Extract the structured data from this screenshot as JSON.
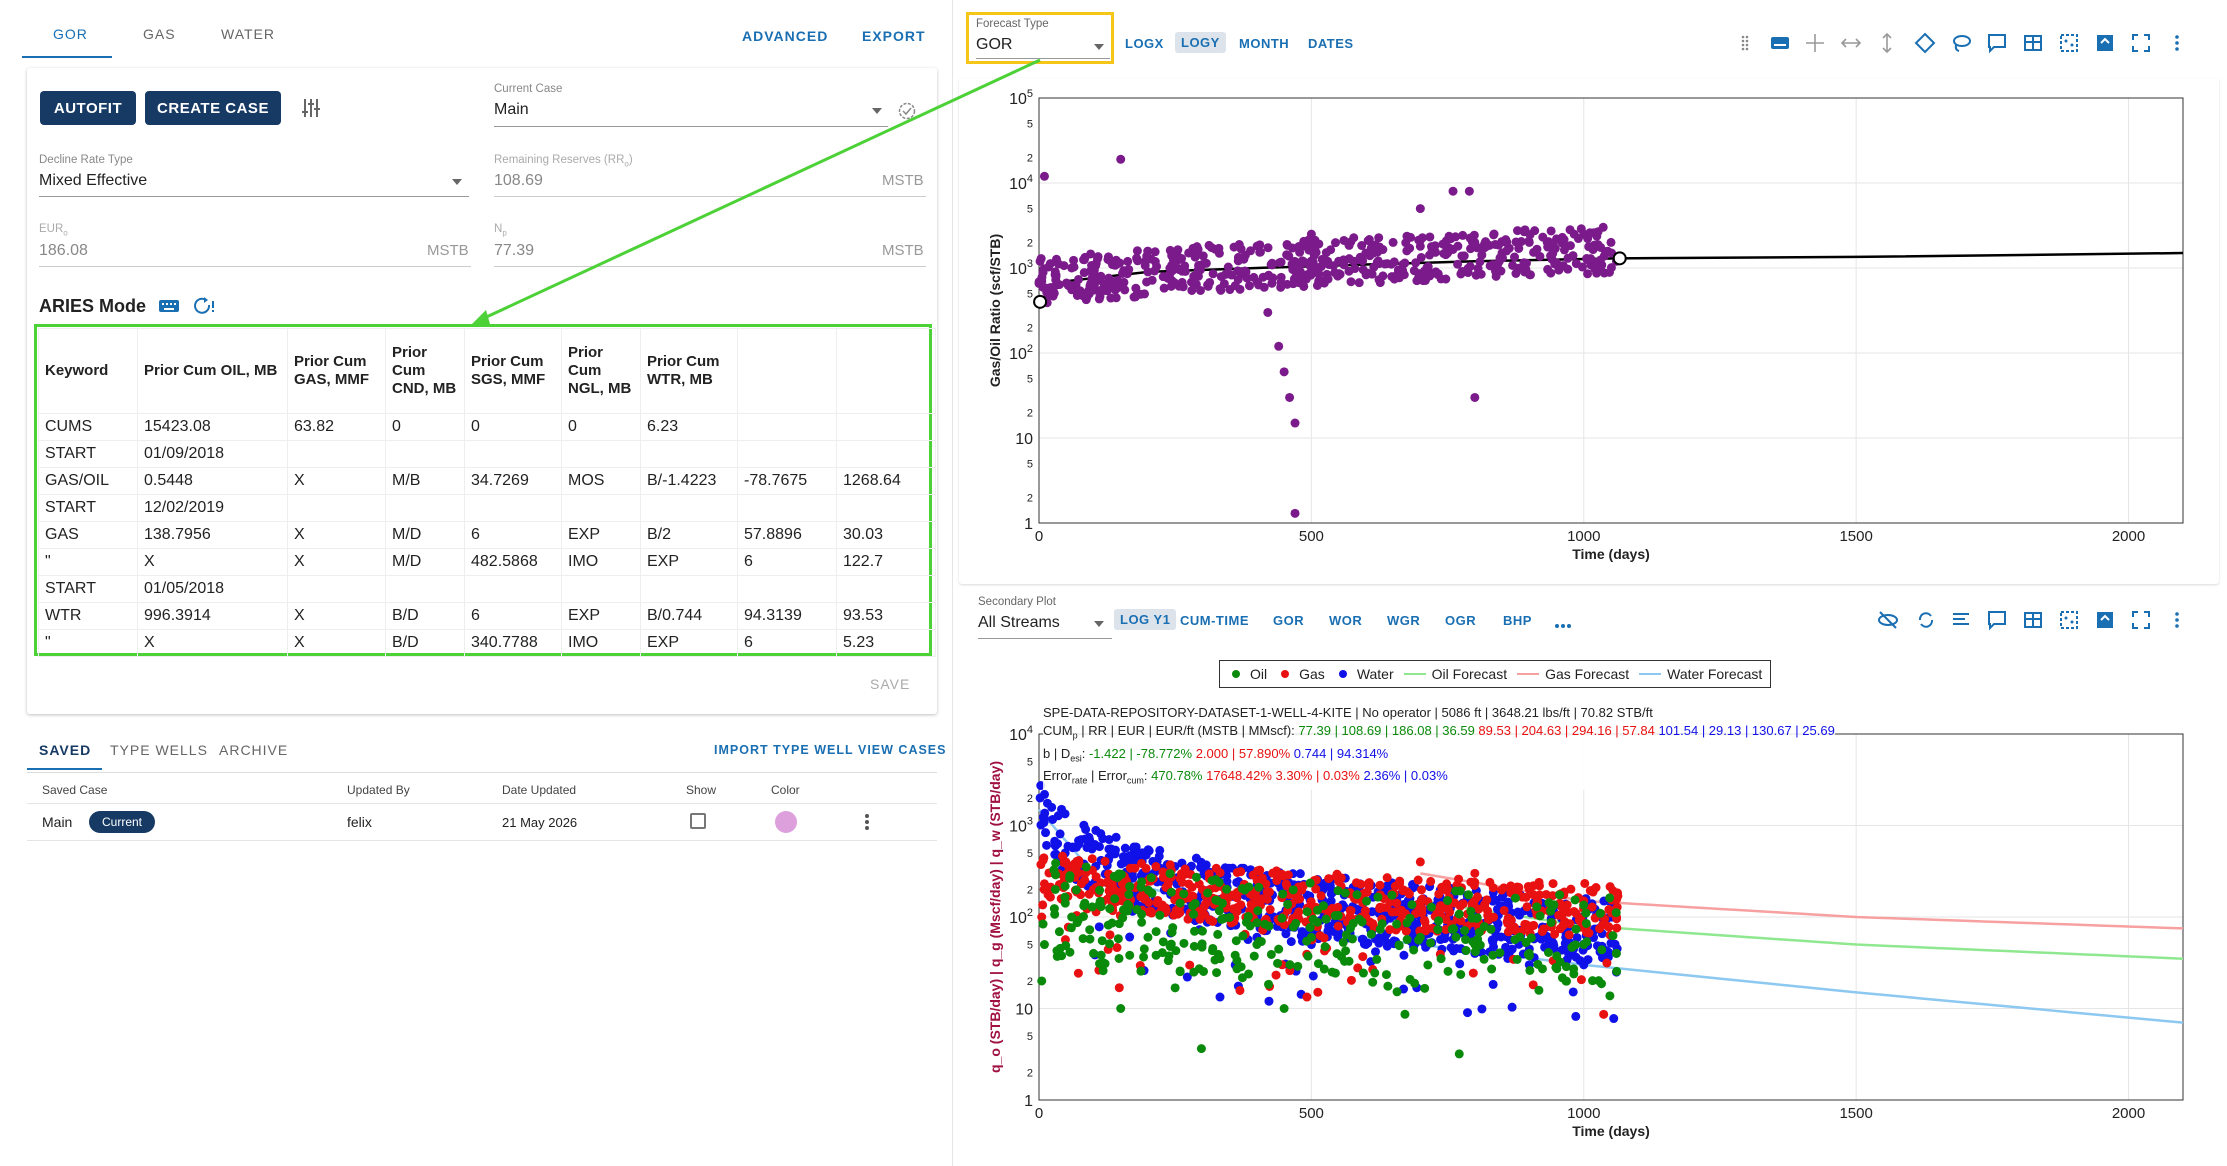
{
  "tabs": [
    "GOR",
    "GAS",
    "WATER"
  ],
  "top_actions": {
    "advanced": "ADVANCED",
    "export": "EXPORT"
  },
  "toolbar": {
    "autofit": "AUTOFIT",
    "create_case": "CREATE CASE"
  },
  "current_case": {
    "label": "Current Case",
    "value": "Main"
  },
  "decline_rate_type": {
    "label": "Decline Rate Type",
    "value": "Mixed Effective"
  },
  "remaining_reserves": {
    "label": "Remaining Reserves (RR",
    "sub": "o",
    "label_end": ")",
    "value": "108.69",
    "unit": "MSTB"
  },
  "eur": {
    "label": "EUR",
    "sub": "o",
    "value": "186.08",
    "unit": "MSTB"
  },
  "np": {
    "label": "N",
    "sub": "p",
    "value": "77.39",
    "unit": "MSTB"
  },
  "aries": {
    "title": "ARIES Mode",
    "headers": [
      "Keyword",
      "Prior Cum OIL, MB",
      "Prior Cum GAS, MMF",
      "Prior Cum CND, MB",
      "Prior Cum SGS, MMF",
      "Prior Cum NGL, MB",
      "Prior Cum WTR, MB",
      "",
      ""
    ],
    "rows": [
      [
        "CUMS",
        "15423.08",
        "63.82",
        "0",
        "0",
        "0",
        "6.23",
        "",
        ""
      ],
      [
        "START",
        "01/09/2018",
        "",
        "",
        "",
        "",
        "",
        "",
        ""
      ],
      [
        "GAS/OIL",
        "0.5448",
        "X",
        "M/B",
        "34.7269",
        "MOS",
        "B/-1.4223",
        "-78.7675",
        "1268.64"
      ],
      [
        "START",
        "12/02/2019",
        "",
        "",
        "",
        "",
        "",
        "",
        ""
      ],
      [
        "GAS",
        "138.7956",
        "X",
        "M/D",
        "6",
        "EXP",
        "B/2",
        "57.8896",
        "30.03"
      ],
      [
        "\"",
        "X",
        "X",
        "M/D",
        "482.5868",
        "IMO",
        "EXP",
        "6",
        "122.7"
      ],
      [
        "START",
        "01/05/2018",
        "",
        "",
        "",
        "",
        "",
        "",
        ""
      ],
      [
        "WTR",
        "996.3914",
        "X",
        "B/D",
        "6",
        "EXP",
        "B/0.744",
        "94.3139",
        "93.53"
      ],
      [
        "\"",
        "X",
        "X",
        "B/D",
        "340.7788",
        "IMO",
        "EXP",
        "6",
        "5.23"
      ]
    ],
    "save": "SAVE"
  },
  "cases_tabs": [
    "SAVED",
    "TYPE WELLS",
    "ARCHIVE"
  ],
  "cases_actions": {
    "import": "IMPORT TYPE WELL",
    "view": "VIEW CASES"
  },
  "cases_table": {
    "headers": [
      "Saved Case",
      "Updated By",
      "Date Updated",
      "Show",
      "Color"
    ],
    "row": {
      "name": "Main",
      "badge": "Current",
      "updated_by": "felix",
      "date": "21 May 2026",
      "color": "#dda0dd"
    }
  },
  "forecast_type": {
    "label": "Forecast Type",
    "value": "GOR"
  },
  "plot1_buttons": [
    "LOGX",
    "LOGY",
    "MONTH",
    "DATES"
  ],
  "secondary_plot": {
    "label": "Secondary Plot",
    "value": "All Streams"
  },
  "plot2_buttons": [
    "LOG Y1",
    "CUM-TIME",
    "GOR",
    "WOR",
    "WGR",
    "OGR",
    "BHP"
  ],
  "colors": {
    "accent": "#1a6fb3",
    "navy": "#163a64",
    "green_box": "#4cd137",
    "yellow_box": "#f5c518",
    "purple": "#7b1a8a",
    "oil": "#0a8a0a",
    "gas": "#e81010",
    "water": "#1010e8",
    "oil_fc": "#8fe88f",
    "gas_fc": "#f7a0a0",
    "water_fc": "#8cc8f0"
  },
  "chart_data": [
    {
      "type": "scatter",
      "title": "",
      "xlabel": "Time (days)",
      "ylabel": "Gas/Oil Ratio (scf/STB)",
      "xlim": [
        0,
        2100
      ],
      "ylim": [
        1,
        100000
      ],
      "yscale": "log",
      "x_ticks": [
        "0",
        "500",
        "1000",
        "1500",
        "2000"
      ],
      "y_ticks": [
        {
          "base": "10",
          "exp": "5"
        },
        {
          "base": "10",
          "exp": "4"
        },
        {
          "base": "10",
          "exp": "3"
        },
        {
          "base": "10",
          "exp": "2"
        },
        {
          "base": "10",
          "exp": ""
        },
        {
          "base": "1",
          "exp": ""
        }
      ],
      "y_minor_ticks": [
        "5",
        "2"
      ],
      "grid": true,
      "series": [
        {
          "name": "",
          "kind": "points",
          "color": "#7b1a8a",
          "points": [
            [
              10,
              12000
            ],
            [
              150,
              19000
            ],
            [
              2,
              1200
            ],
            [
              5,
              700
            ],
            [
              30,
              900
            ],
            [
              60,
              1000
            ],
            [
              100,
              800
            ],
            [
              200,
              900
            ],
            [
              300,
              1100
            ],
            [
              380,
              900
            ],
            [
              420,
              300
            ],
            [
              440,
              120
            ],
            [
              450,
              60
            ],
            [
              460,
              30
            ],
            [
              470,
              15
            ],
            [
              470,
              1.3
            ],
            [
              480,
              900
            ],
            [
              500,
              2500
            ],
            [
              550,
              1200
            ],
            [
              600,
              1500
            ],
            [
              650,
              2000
            ],
            [
              700,
              1800
            ],
            [
              700,
              5000
            ],
            [
              750,
              1500
            ],
            [
              760,
              8000
            ],
            [
              790,
              8000
            ],
            [
              800,
              2000
            ],
            [
              800,
              30
            ],
            [
              850,
              1500
            ],
            [
              900,
              2000
            ],
            [
              950,
              2200
            ],
            [
              1000,
              2500
            ],
            [
              1050,
              2000
            ],
            [
              1060,
              1200
            ]
          ]
        },
        {
          "name": "",
          "kind": "line",
          "color": "#000000",
          "points": [
            [
              0,
              400
            ],
            [
              50,
              700
            ],
            [
              200,
              900
            ],
            [
              400,
              1000
            ],
            [
              600,
              1100
            ],
            [
              800,
              1200
            ],
            [
              1060,
              1300
            ],
            [
              1500,
              1350
            ],
            [
              2100,
              1500
            ]
          ]
        }
      ]
    },
    {
      "type": "scatter",
      "title": "",
      "xlabel": "Time (days)",
      "ylabel": "q_o (STB/day) | q_g (Mscf/day) | q_w (STB/day)",
      "xlim": [
        0,
        2100
      ],
      "ylim": [
        1,
        10000
      ],
      "yscale": "log",
      "x_ticks": [
        "0",
        "500",
        "1000",
        "1500",
        "2000"
      ],
      "y_ticks": [
        {
          "base": "10",
          "exp": "4"
        },
        {
          "base": "10",
          "exp": "3"
        },
        {
          "base": "10",
          "exp": "2"
        },
        {
          "base": "10",
          "exp": ""
        },
        {
          "base": "1",
          "exp": ""
        }
      ],
      "y_minor_ticks": [
        "5",
        "2"
      ],
      "grid": true,
      "legend": [
        "Oil",
        "Gas",
        "Water",
        "Oil Forecast",
        "Gas Forecast",
        "Water Forecast"
      ],
      "legend_position": "top",
      "annotation_lines": [
        "SPE-DATA-REPOSITORY-DATASET-1-WELL-4-KITE | No operator | 5086 ft | 3648.21 lbs/ft | 70.82 STB/ft"
      ],
      "cum_line": {
        "lead": "CUM",
        "sub": "p",
        "rest": " | RR | EUR | EUR/ft (MSTB | MMscf): ",
        "oil": "77.39 | 108.69 | 186.08 | 36.59",
        "gas": " 89.53 | 204.63 | 294.16 | 57.84",
        "water": " 101.54 | 29.13 | 130.67 | 25.69"
      },
      "b_line": {
        "lead": "b | D",
        "sub": "esi",
        "rest": ": ",
        "oil": "-1.422 | -78.772%",
        "gas": " 2.000 | 57.890%",
        "water": " 0.744 | 94.314%"
      },
      "err_line": {
        "lead": "Error",
        "sub": "rate",
        "mid": " | Error",
        "sub2": "cum",
        "rest": ": ",
        "oil": "470.78%",
        "gas": " 17648.42% 3.30% |",
        "gas2": " 0.03%",
        "water": " 2.36% | 0.03%"
      },
      "series": [
        {
          "name": "Oil",
          "color": "#0a8a0a",
          "points": [
            [
              5,
              20
            ],
            [
              10,
              50
            ],
            [
              30,
              200
            ],
            [
              60,
              100
            ],
            [
              100,
              40
            ],
            [
              150,
              10
            ],
            [
              200,
              60
            ],
            [
              300,
              70
            ],
            [
              400,
              50
            ],
            [
              450,
              10
            ],
            [
              500,
              60
            ],
            [
              700,
              60
            ],
            [
              800,
              50
            ],
            [
              900,
              40
            ],
            [
              1000,
              50
            ],
            [
              1060,
              40
            ]
          ]
        },
        {
          "name": "Gas",
          "color": "#e81010",
          "points": [
            [
              5,
              100
            ],
            [
              20,
              200
            ],
            [
              60,
              300
            ],
            [
              100,
              200
            ],
            [
              200,
              250
            ],
            [
              300,
              200
            ],
            [
              400,
              150
            ],
            [
              500,
              100
            ],
            [
              600,
              100
            ],
            [
              700,
              400
            ],
            [
              750,
              150
            ],
            [
              800,
              300
            ],
            [
              900,
              200
            ],
            [
              1000,
              150
            ],
            [
              1060,
              100
            ]
          ]
        },
        {
          "name": "Water",
          "color": "#1010e8",
          "points": [
            [
              2,
              2000
            ],
            [
              10,
              1200
            ],
            [
              30,
              600
            ],
            [
              60,
              300
            ],
            [
              100,
              200
            ],
            [
              200,
              120
            ],
            [
              300,
              100
            ],
            [
              400,
              60
            ],
            [
              500,
              50
            ],
            [
              600,
              50
            ],
            [
              700,
              100
            ],
            [
              800,
              40
            ],
            [
              900,
              30
            ],
            [
              1000,
              30
            ],
            [
              1060,
              25
            ]
          ]
        },
        {
          "name": "Oil Forecast",
          "color": "#8fe88f",
          "points": [
            [
              700,
              150
            ],
            [
              1000,
              80
            ],
            [
              1500,
              50
            ],
            [
              2100,
              35
            ]
          ]
        },
        {
          "name": "Gas Forecast",
          "color": "#f7a0a0",
          "points": [
            [
              700,
              300
            ],
            [
              1000,
              150
            ],
            [
              1500,
              100
            ],
            [
              2100,
              75
            ]
          ]
        },
        {
          "name": "Water Forecast",
          "color": "#8cc8f0",
          "points": [
            [
              0,
              1500
            ],
            [
              100,
              300
            ],
            [
              500,
              70
            ],
            [
              1000,
              30
            ],
            [
              1500,
              15
            ],
            [
              2100,
              7
            ]
          ]
        }
      ]
    }
  ]
}
